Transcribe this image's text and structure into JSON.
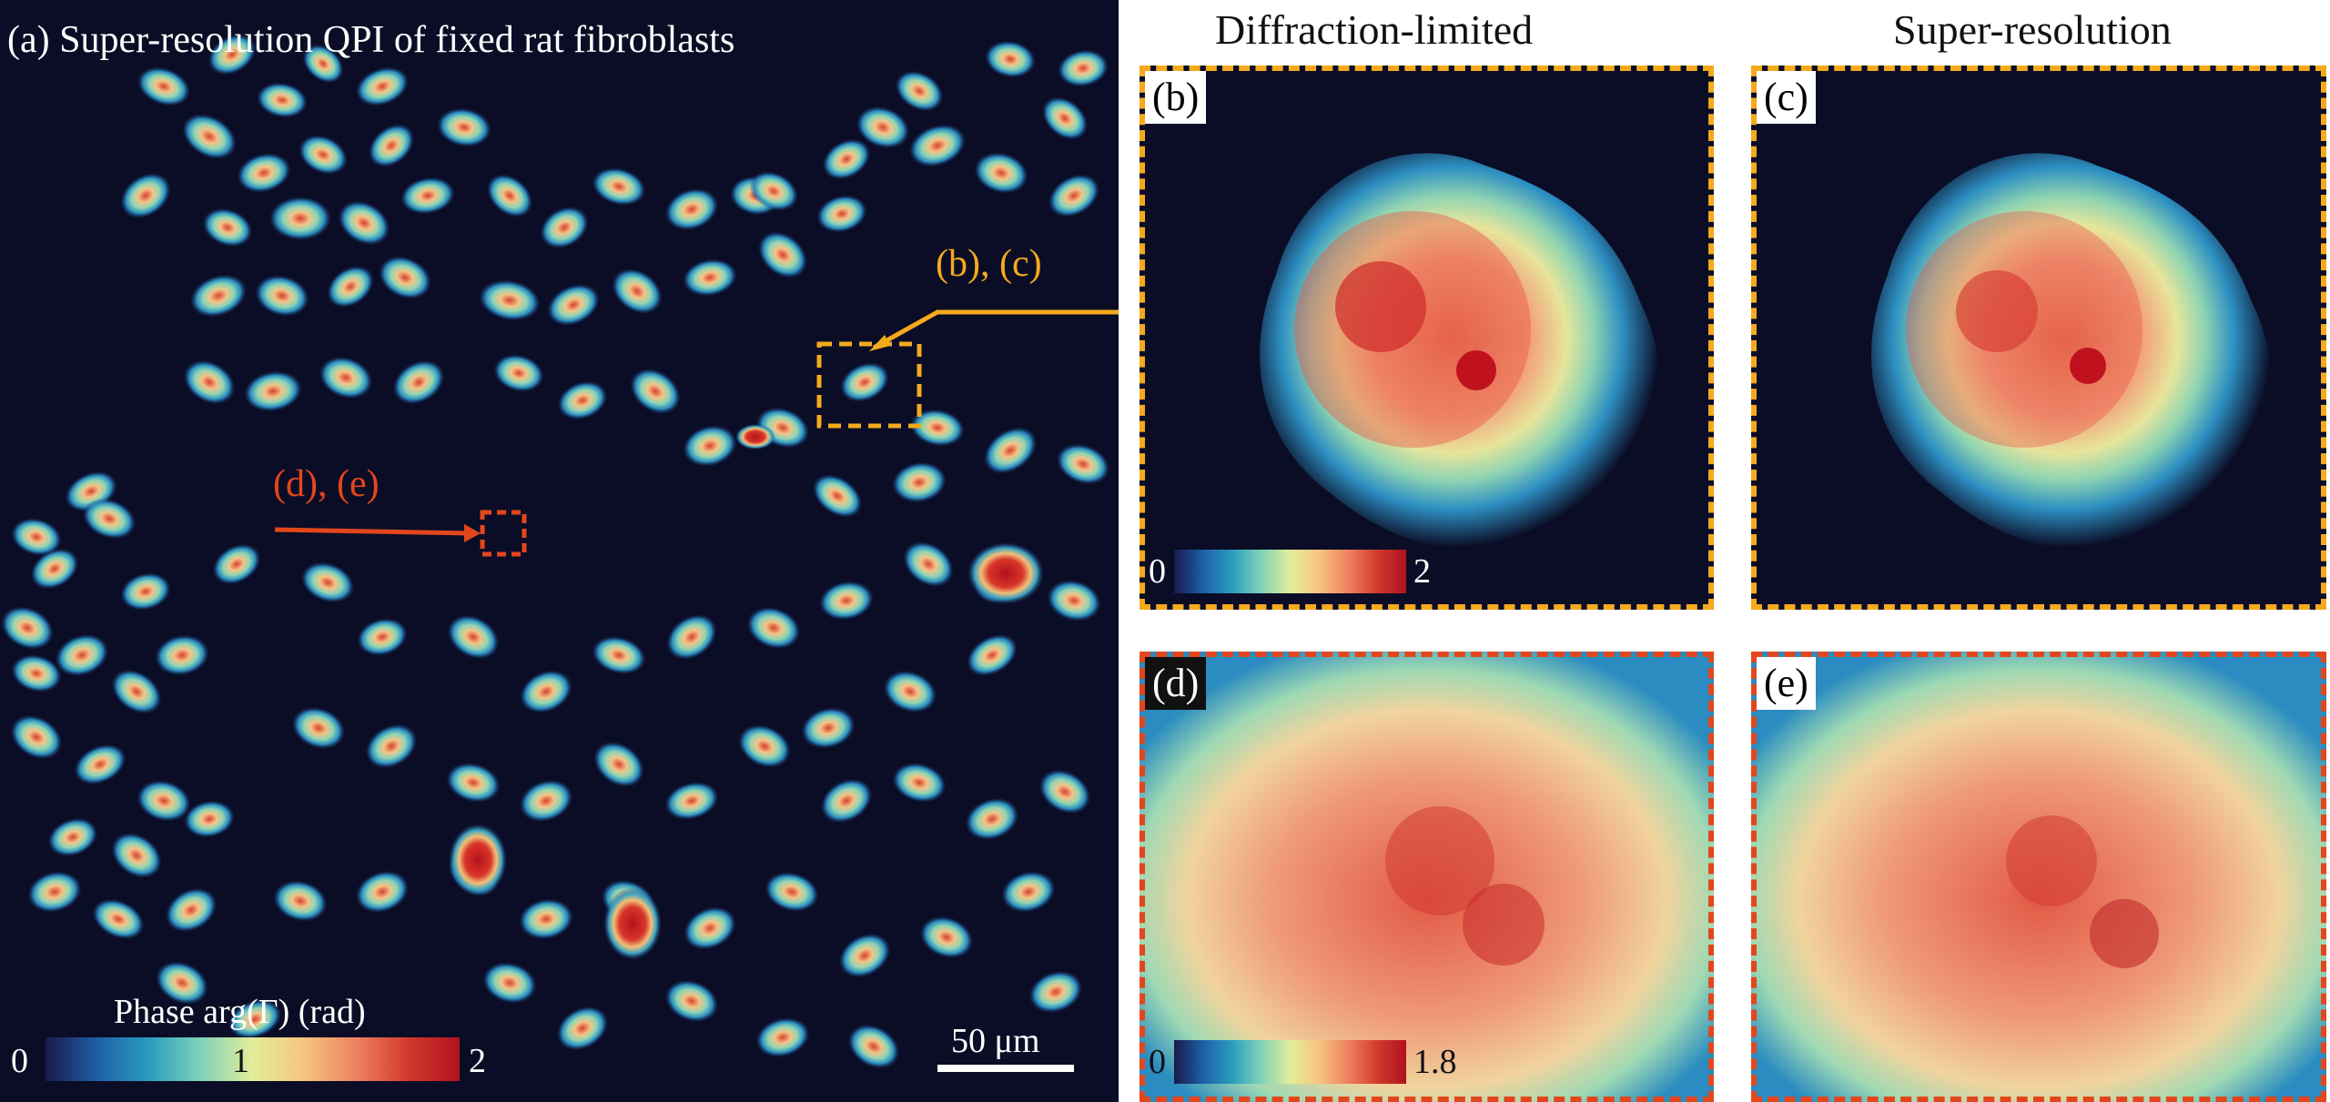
{
  "figure": {
    "panel_a": {
      "label": "(a)",
      "title": "Super-resolution QPI of fixed rat fibroblasts",
      "callout_bc": "(b), (c)",
      "callout_de": "(d), (e)",
      "colorbar": {
        "title": "Phase arg(Γ) (rad)",
        "min": "0",
        "mid": "1",
        "max": "2"
      },
      "scalebar": "50 μm"
    },
    "panel_b": {
      "label": "(b)",
      "column_title": "Diffraction-limited",
      "colorbar": {
        "min": "0",
        "max": "2"
      }
    },
    "panel_c": {
      "label": "(c)",
      "column_title": "Super-resolution"
    },
    "panel_d": {
      "label": "(d)",
      "colorbar": {
        "min": "0",
        "max": "1.8"
      }
    },
    "panel_e": {
      "label": "(e)"
    },
    "colors": {
      "background": "#0b0d26",
      "yellow_box": "#f4aa1c",
      "red_box": "#e3461c"
    }
  }
}
